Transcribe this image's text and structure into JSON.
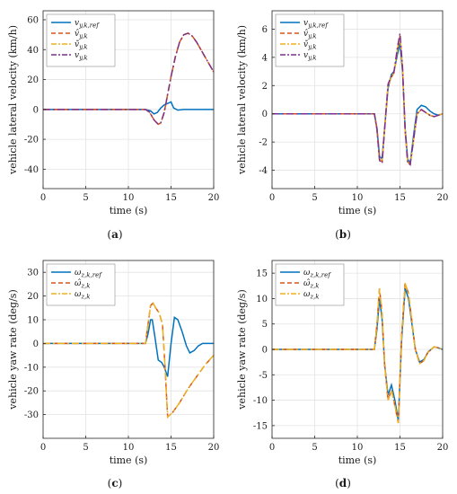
{
  "colors": {
    "blue": "#0072bd",
    "red": "#d95319",
    "orange": "#edb120",
    "purple": "#7e2f8e",
    "grid": "#e3e3e3",
    "axis": "#262626"
  },
  "chart_data": [
    {
      "type": "line",
      "caption": "(a)",
      "xlabel": "time (s)",
      "ylabel": "vehicle lateral velocity (km/h)",
      "xlim": [
        0,
        20
      ],
      "ylim": [
        -53,
        66
      ],
      "xticks": [
        0,
        5,
        10,
        15,
        20
      ],
      "yticks": [
        -40,
        -20,
        0,
        20,
        40,
        60
      ],
      "grid": true,
      "legend_position": "top-left",
      "series": [
        {
          "name": "v_{y,k,ref}",
          "color": "blue",
          "dash": "solid",
          "x": [
            0,
            12,
            12.6,
            13.0,
            13.4,
            13.8,
            14.2,
            14.6,
            15.0,
            15.3,
            15.8,
            16.5,
            20
          ],
          "y": [
            0,
            0,
            -1,
            -3,
            -2,
            1,
            3,
            4,
            5,
            1,
            -0.5,
            0,
            0
          ]
        },
        {
          "name": "v̂_{y,k}",
          "color": "red",
          "dash": "dashed",
          "x": [
            0,
            12,
            12.5,
            13.0,
            13.5,
            13.8,
            14.2,
            14.6,
            15.0,
            15.5,
            16.0,
            16.5,
            17.0,
            17.5,
            18.0,
            18.5,
            19.0,
            19.5,
            20
          ],
          "y": [
            0,
            0,
            -2,
            -7,
            -10,
            -9,
            -2,
            10,
            22,
            35,
            45,
            50,
            51,
            49,
            45,
            40,
            35,
            30,
            25
          ]
        },
        {
          "name": "ṽ_{y,k}",
          "color": "orange",
          "dash": "dashdot",
          "x": [
            0,
            12,
            12.5,
            13.0,
            13.5,
            13.8,
            14.2,
            14.6,
            15.0,
            15.5,
            16.0,
            16.5,
            17.0,
            17.5,
            18.0,
            18.5,
            19.0,
            19.5,
            20
          ],
          "y": [
            0,
            0,
            -2,
            -7,
            -10,
            -9,
            -2,
            10,
            22,
            35,
            45,
            50,
            51,
            49,
            45,
            40,
            35,
            30,
            25
          ]
        },
        {
          "name": "v_{y,k}",
          "color": "purple",
          "dash": "dashdot",
          "x": [
            0,
            12,
            12.5,
            13.0,
            13.5,
            13.8,
            14.2,
            14.6,
            15.0,
            15.5,
            16.0,
            16.5,
            17.0,
            17.5,
            18.0,
            18.5,
            19.0,
            19.5,
            20
          ],
          "y": [
            0,
            0,
            -2,
            -7,
            -10,
            -9,
            -2,
            10,
            22,
            35,
            45,
            50,
            51,
            49,
            45,
            40,
            35,
            30,
            25
          ]
        }
      ]
    },
    {
      "type": "line",
      "caption": "(b)",
      "xlabel": "time (s)",
      "ylabel": "vehicle lateral velocity (km/h)",
      "xlim": [
        0,
        20
      ],
      "ylim": [
        -5.3,
        7.3
      ],
      "xticks": [
        0,
        5,
        10,
        15,
        20
      ],
      "yticks": [
        -4,
        -2,
        0,
        2,
        4,
        6
      ],
      "grid": true,
      "legend_position": "top-left",
      "series": [
        {
          "name": "v_{y,k,ref}",
          "color": "blue",
          "dash": "solid",
          "x": [
            0,
            12,
            12.3,
            12.6,
            12.9,
            13.2,
            13.6,
            14.0,
            14.3,
            14.7,
            15.0,
            15.3,
            15.6,
            15.9,
            16.2,
            16.6,
            17.0,
            17.5,
            18.0,
            18.5,
            19.0,
            19.5,
            20
          ],
          "y": [
            0,
            0,
            -1.0,
            -3.0,
            -3.2,
            -1.0,
            1.8,
            2.8,
            3.0,
            4.2,
            5.0,
            3.0,
            -1.0,
            -3.2,
            -3.5,
            -1.5,
            0.3,
            0.6,
            0.5,
            0.2,
            0,
            -0.1,
            0
          ]
        },
        {
          "name": "v̂_{y,k}",
          "color": "red",
          "dash": "dashed",
          "x": [
            0,
            12,
            12.3,
            12.6,
            12.9,
            13.2,
            13.6,
            14.0,
            14.3,
            14.7,
            15.0,
            15.3,
            15.6,
            15.9,
            16.2,
            16.6,
            17.0,
            17.5,
            18.0,
            18.5,
            19.0,
            19.5,
            20
          ],
          "y": [
            0,
            0,
            -1.1,
            -3.2,
            -3.4,
            -1.0,
            2.0,
            2.6,
            2.9,
            4.5,
            5.5,
            3.2,
            -1.1,
            -3.4,
            -3.6,
            -1.8,
            0,
            0.3,
            0.1,
            -0.1,
            -0.2,
            -0.1,
            0
          ]
        },
        {
          "name": "ṽ_{y,k}",
          "color": "orange",
          "dash": "dashdot",
          "x": [
            0,
            12,
            12.3,
            12.6,
            12.9,
            13.2,
            13.6,
            14.0,
            14.3,
            14.7,
            15.0,
            15.3,
            15.6,
            15.9,
            16.2,
            16.6,
            17.0,
            17.5,
            18.0,
            18.5,
            19.0,
            19.5,
            20
          ],
          "y": [
            0,
            0,
            -1.1,
            -3.2,
            -3.4,
            -1.0,
            2.0,
            2.6,
            2.9,
            4.6,
            5.6,
            3.2,
            -1.1,
            -3.4,
            -3.6,
            -1.8,
            0,
            0.3,
            0.1,
            -0.1,
            -0.2,
            -0.1,
            0
          ]
        },
        {
          "name": "v_{y,k}",
          "color": "purple",
          "dash": "dashdot",
          "x": [
            0,
            12,
            12.3,
            12.6,
            12.9,
            13.2,
            13.6,
            14.0,
            14.3,
            14.7,
            15.0,
            15.3,
            15.6,
            15.9,
            16.2,
            16.6,
            17.0,
            17.5,
            18.0,
            18.5,
            19.0,
            19.5,
            20
          ],
          "y": [
            0,
            0,
            -1.1,
            -3.3,
            -3.5,
            -1.1,
            2.1,
            2.7,
            3.0,
            4.7,
            5.7,
            3.3,
            -1.1,
            -3.5,
            -3.6,
            -1.8,
            0,
            0.3,
            0.1,
            -0.1,
            -0.2,
            -0.1,
            0
          ]
        }
      ]
    },
    {
      "type": "line",
      "caption": "(c)",
      "xlabel": "time (s)",
      "ylabel": "vehicle yaw rate (deg/s)",
      "xlim": [
        0,
        20
      ],
      "ylim": [
        -40,
        35
      ],
      "xticks": [
        0,
        5,
        10,
        15,
        20
      ],
      "yticks": [
        -30,
        -20,
        -10,
        0,
        10,
        20,
        30
      ],
      "grid": true,
      "legend_position": "top-left",
      "series": [
        {
          "name": "ω_{z,k,ref}",
          "color": "blue",
          "dash": "solid",
          "x": [
            0,
            12,
            12.3,
            12.6,
            12.8,
            13.1,
            13.5,
            13.9,
            14.2,
            14.6,
            15.0,
            15.4,
            15.8,
            16.3,
            16.8,
            17.2,
            17.7,
            18.2,
            18.7,
            19.2,
            20
          ],
          "y": [
            0,
            0,
            4,
            10,
            10,
            3,
            -7,
            -8,
            -10,
            -14,
            0,
            11,
            10,
            5,
            -1,
            -4,
            -3,
            -1,
            0,
            0,
            0
          ]
        },
        {
          "name": "ω̂_{z,k}",
          "color": "red",
          "dash": "dashed",
          "x": [
            0,
            12,
            12.3,
            12.6,
            12.9,
            13.2,
            13.6,
            14.0,
            14.3,
            14.6,
            15.2,
            16.0,
            17.0,
            18.0,
            19.0,
            20
          ],
          "y": [
            0,
            0,
            8,
            16,
            17,
            15,
            13,
            8,
            -10,
            -31,
            -29,
            -25,
            -19,
            -14,
            -9,
            -5
          ]
        },
        {
          "name": "ω_{z,k}",
          "color": "orange",
          "dash": "dashdot",
          "x": [
            0,
            12,
            12.3,
            12.6,
            12.9,
            13.2,
            13.6,
            14.0,
            14.3,
            14.6,
            15.2,
            16.0,
            17.0,
            18.0,
            19.0,
            20
          ],
          "y": [
            0,
            0,
            8,
            16,
            17,
            15,
            13,
            8,
            -10,
            -31,
            -29,
            -25,
            -19,
            -14,
            -9,
            -5
          ]
        }
      ]
    },
    {
      "type": "line",
      "caption": "(d)",
      "xlabel": "time (s)",
      "ylabel": "vehicle yaw rate (deg/s)",
      "xlim": [
        0,
        20
      ],
      "ylim": [
        -17.5,
        17.5
      ],
      "xticks": [
        0,
        5,
        10,
        15,
        20
      ],
      "yticks": [
        -15,
        -10,
        -5,
        0,
        5,
        10,
        15
      ],
      "grid": true,
      "legend_position": "top-left",
      "series": [
        {
          "name": "ω_{z,k,ref}",
          "color": "blue",
          "dash": "solid",
          "x": [
            0,
            12,
            12.3,
            12.6,
            12.9,
            13.2,
            13.6,
            14.0,
            14.4,
            14.8,
            15.2,
            15.6,
            16.0,
            16.4,
            16.8,
            17.3,
            17.8,
            18.3,
            19.0,
            19.5,
            20
          ],
          "y": [
            0,
            0,
            4,
            10,
            6,
            -3,
            -9,
            -7,
            -10,
            -14,
            2,
            12,
            10,
            5,
            0,
            -2.5,
            -2,
            -0.5,
            0.5,
            0.3,
            0
          ]
        },
        {
          "name": "ω̂_{z,k}",
          "color": "red",
          "dash": "dashed",
          "x": [
            0,
            12,
            12.3,
            12.6,
            12.9,
            13.2,
            13.6,
            14.0,
            14.4,
            14.8,
            15.2,
            15.6,
            16.0,
            16.4,
            16.8,
            17.3,
            17.8,
            18.3,
            19.0,
            19.5,
            20
          ],
          "y": [
            0,
            0,
            5,
            12,
            7,
            -3,
            -10,
            -8,
            -11,
            -14.5,
            3,
            13,
            11,
            5.5,
            0,
            -2.8,
            -2.2,
            -0.5,
            0.5,
            0.3,
            0
          ]
        },
        {
          "name": "ω_{z,k}",
          "color": "orange",
          "dash": "dashdot",
          "x": [
            0,
            12,
            12.3,
            12.6,
            12.9,
            13.2,
            13.6,
            14.0,
            14.4,
            14.8,
            15.2,
            15.6,
            16.0,
            16.4,
            16.8,
            17.3,
            17.8,
            18.3,
            19.0,
            19.5,
            20
          ],
          "y": [
            0,
            0,
            5,
            12,
            7,
            -3,
            -10,
            -8,
            -11,
            -14.5,
            3,
            13,
            11,
            5.5,
            0,
            -2.8,
            -2.2,
            -0.5,
            0.5,
            0.3,
            0
          ]
        }
      ]
    }
  ]
}
